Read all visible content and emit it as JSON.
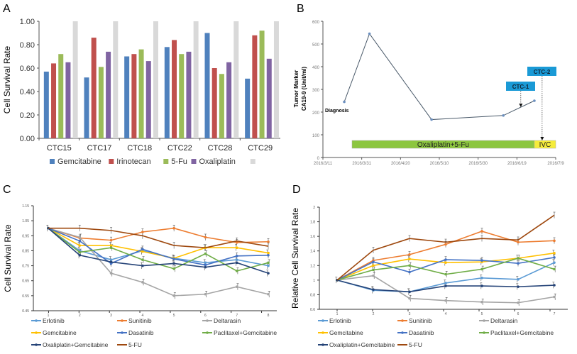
{
  "chart_data": [
    {
      "panel": "A",
      "type": "bar",
      "ylabel": "Cell Survival Rate",
      "ylim": [
        0,
        1
      ],
      "yticks": [
        "0.00",
        "0.20",
        "0.40",
        "0.60",
        "0.80",
        "1.00"
      ],
      "categories": [
        "CTC15",
        "CTC17",
        "CTC18",
        "CTC22",
        "CTC28",
        "CTC29"
      ],
      "legend_position": "bottom",
      "series": [
        {
          "name": "Gemcitabine",
          "color": "#4f81bd",
          "values": [
            0.57,
            0.52,
            0.7,
            0.78,
            0.9,
            0.51
          ]
        },
        {
          "name": "Irinotecan",
          "color": "#c0504d",
          "values": [
            0.64,
            0.86,
            0.72,
            0.84,
            0.6,
            0.88
          ]
        },
        {
          "name": "5-Fu",
          "color": "#9bbb59",
          "values": [
            0.72,
            0.61,
            0.76,
            0.72,
            0.55,
            0.92
          ]
        },
        {
          "name": "Oxaliplatin",
          "color": "#8064a2",
          "values": [
            0.65,
            0.74,
            0.66,
            0.74,
            0.65,
            0.68
          ]
        },
        {
          "name": "",
          "color": "#d9d9d9",
          "values": [
            1.0,
            1.0,
            1.0,
            1.0,
            1.0,
            1.0
          ]
        }
      ]
    },
    {
      "panel": "B",
      "type": "line",
      "ylabel_line1": "Tumor Marker",
      "ylabel_line2": "CA19-9 (Unit/ml)",
      "ylim": [
        0,
        600
      ],
      "yticks": [
        "0",
        "100",
        "200",
        "300",
        "400",
        "500",
        "600"
      ],
      "xlim": [
        "2016-03-11",
        "2016-07-09"
      ],
      "xticks": [
        "2016/3/11",
        "2016/3/31",
        "2016/4/20",
        "2016/5/10",
        "2016/5/30",
        "2016/6/19",
        "2016/7/9"
      ],
      "color": "#4a5a6a",
      "points": [
        {
          "x": "2016-03-22",
          "y": 245
        },
        {
          "x": "2016-04-04",
          "y": 545
        },
        {
          "x": "2016-05-06",
          "y": 167
        },
        {
          "x": "2016-06-12",
          "y": 185
        },
        {
          "x": "2016-06-28",
          "y": 250
        }
      ],
      "annotations": {
        "diagnosis": "Diagnosis",
        "ctc1": {
          "label": "CTC-1",
          "x": "2016-06-21",
          "color": "#1a9ad6"
        },
        "ctc2": {
          "label": "CTC-2",
          "x": "2016-07-02",
          "color": "#1a9ad6"
        }
      },
      "treatments": [
        {
          "label": "Oxaliplatin+5-Fu",
          "start": "2016-03-26",
          "end": "2016-06-28",
          "color": "#8cc63f"
        },
        {
          "label": "IVC",
          "start": "2016-06-28",
          "end": "2016-07-09",
          "color": "#f5ec3a"
        }
      ]
    },
    {
      "panel": "C",
      "type": "line",
      "ylabel": "Cell Survival Rate",
      "ylim": [
        0.45,
        1.15
      ],
      "yticks": [
        "0.45",
        "0.55",
        "0.65",
        "0.75",
        "0.85",
        "0.95",
        "1.05",
        "1.15"
      ],
      "x": [
        1,
        2,
        3,
        4,
        5,
        6,
        7,
        8
      ],
      "legend_position": "bottom",
      "series": [
        {
          "name": "Erlotinib",
          "color": "#5b9bd5",
          "marker": "diamond",
          "values": [
            1.0,
            0.85,
            0.79,
            0.85,
            0.8,
            0.77,
            0.79,
            0.75
          ]
        },
        {
          "name": "Sunitinib",
          "color": "#ed7d31",
          "marker": "square",
          "values": [
            1.0,
            0.935,
            0.92,
            0.975,
            1.0,
            0.94,
            0.905,
            0.91
          ]
        },
        {
          "name": "Deltarasin",
          "color": "#a5a5a5",
          "marker": "triangle",
          "values": [
            1.0,
            0.94,
            0.7,
            0.64,
            0.55,
            0.56,
            0.61,
            0.56
          ]
        },
        {
          "name": "Gemcitabine",
          "color": "#ffc000",
          "marker": "x",
          "values": [
            1.0,
            0.885,
            0.885,
            0.845,
            0.8,
            0.87,
            0.87,
            0.835
          ]
        },
        {
          "name": "Dasatinib",
          "color": "#4472c4",
          "marker": "star",
          "values": [
            1.0,
            0.915,
            0.765,
            0.86,
            0.795,
            0.755,
            0.815,
            0.82
          ]
        },
        {
          "name": "Paclitaxel+Gemcitabine",
          "color": "#70ad47",
          "marker": "circle",
          "values": [
            1.0,
            0.84,
            0.87,
            0.79,
            0.73,
            0.83,
            0.715,
            0.77
          ]
        },
        {
          "name": "Oxaliplatin+Gemcitabine",
          "color": "#264478",
          "marker": "plus",
          "values": [
            1.0,
            0.82,
            0.775,
            0.75,
            0.765,
            0.74,
            0.77,
            0.7
          ]
        },
        {
          "name": "5-FU",
          "color": "#9e480e",
          "marker": "none",
          "values": [
            1.0,
            1.0,
            0.985,
            0.95,
            0.885,
            0.87,
            0.915,
            0.88
          ]
        }
      ]
    },
    {
      "panel": "D",
      "type": "line",
      "ylabel": "Relative Cell Survival Rate",
      "ylim": [
        0.6,
        2.0
      ],
      "yticks": [
        "0.6",
        "0.8",
        "1",
        "1.2",
        "1.4",
        "1.6",
        "1.8",
        "2"
      ],
      "x": [
        1,
        2,
        3,
        4,
        5,
        6,
        7
      ],
      "legend_position": "bottom",
      "series": [
        {
          "name": "Erlotinib",
          "color": "#5b9bd5",
          "marker": "diamond",
          "values": [
            1,
            0.86,
            0.84,
            0.96,
            1.03,
            1.01,
            1.24
          ]
        },
        {
          "name": "Sunitinib",
          "color": "#ed7d31",
          "marker": "square",
          "values": [
            1,
            1.27,
            1.35,
            1.49,
            1.67,
            1.52,
            1.54
          ]
        },
        {
          "name": "Deltarasin",
          "color": "#a5a5a5",
          "marker": "triangle",
          "values": [
            1,
            1.06,
            0.75,
            0.72,
            0.7,
            0.69,
            0.77
          ]
        },
        {
          "name": "Gemcitabine",
          "color": "#ffc000",
          "marker": "x",
          "values": [
            1,
            1.2,
            1.29,
            1.24,
            1.25,
            1.3,
            1.37
          ]
        },
        {
          "name": "Dasatinib",
          "color": "#4472c4",
          "marker": "star",
          "values": [
            1,
            1.25,
            1.11,
            1.28,
            1.27,
            1.23,
            1.31
          ]
        },
        {
          "name": "Paclitaxel+Gemcitabine",
          "color": "#70ad47",
          "marker": "circle",
          "values": [
            1,
            1.14,
            1.2,
            1.08,
            1.15,
            1.3,
            1.15
          ]
        },
        {
          "name": "Oxaliplatin+Gemcitabine",
          "color": "#264478",
          "marker": "plus",
          "values": [
            1,
            0.87,
            0.84,
            0.92,
            0.92,
            0.91,
            0.93
          ]
        },
        {
          "name": "5-FU",
          "color": "#9e480e",
          "marker": "none",
          "values": [
            1,
            1.41,
            1.57,
            1.52,
            1.57,
            1.55,
            1.89
          ]
        }
      ]
    }
  ],
  "panel_labels": [
    "A",
    "B",
    "C",
    "D"
  ]
}
